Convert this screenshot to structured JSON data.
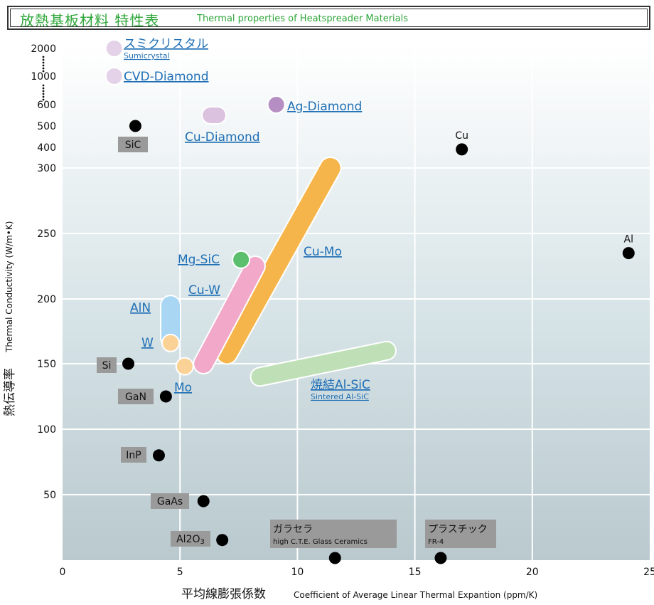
{
  "header": {
    "title_ja": "放熱基板材料 特性表",
    "title_en": "Thermal properties of Heatspreader Materials"
  },
  "chart_data": {
    "type": "scatter",
    "xlabel_ja": "平均線膨張係数",
    "xlabel_en": "Coefficient of Average Linear Thermal Expantion (ppm/K)",
    "ylabel_ja": "熱伝導率",
    "ylabel_en": "Thermal Conductivity (W/m•K)",
    "xlim": [
      0,
      25
    ],
    "x_ticks": [
      "0",
      "5",
      "10",
      "15",
      "20",
      "25"
    ],
    "y_ticks": [
      {
        "label": "2000",
        "v": 2000
      },
      {
        "label": "1000",
        "v": 1000
      },
      {
        "label": "600",
        "v": 600
      },
      {
        "label": "500",
        "v": 500
      },
      {
        "label": "400",
        "v": 400
      },
      {
        "label": "300",
        "v": 300
      },
      {
        "label": "250",
        "v": 250
      },
      {
        "label": "200",
        "v": 200
      },
      {
        "label": "150",
        "v": 150
      },
      {
        "label": "100",
        "v": 100
      },
      {
        "label": "50",
        "v": 50
      }
    ],
    "grid": true,
    "reference_points": [
      {
        "name": "SiC",
        "x": 3.1,
        "y": 500,
        "color": "#000000",
        "style": "box"
      },
      {
        "name": "Cu",
        "x": 17.0,
        "y": 390,
        "color": "#000000",
        "style": "text"
      },
      {
        "name": "Al",
        "x": 24.1,
        "y": 235,
        "color": "#000000",
        "style": "text"
      },
      {
        "name": "Si",
        "x": 2.8,
        "y": 150,
        "color": "#000000",
        "style": "box"
      },
      {
        "name": "GaN",
        "x": 4.4,
        "y": 125,
        "color": "#000000",
        "style": "box"
      },
      {
        "name": "InP",
        "x": 4.1,
        "y": 80,
        "color": "#000000",
        "style": "box"
      },
      {
        "name": "GaAs",
        "x": 6.0,
        "y": 45,
        "color": "#000000",
        "style": "box"
      },
      {
        "name": "Al2O3",
        "x": 6.8,
        "y": 15,
        "color": "#000000",
        "style": "box",
        "sub": "3"
      },
      {
        "name": "ガラセラ",
        "sub": "high C.T.E. Glass Ceramics",
        "x": 11.6,
        "y": 0,
        "color": "#000000",
        "style": "box-wide"
      },
      {
        "name": "プラスチック",
        "sub": "FR-4",
        "x": 16.1,
        "y": 0,
        "color": "#000000",
        "style": "box-wide"
      }
    ],
    "materials": [
      {
        "name": "スミクリスタル",
        "sub": "Sumicrystal",
        "x": [
          2.2,
          2.2
        ],
        "y": [
          2000,
          2000
        ],
        "color": "#e4d3e8"
      },
      {
        "name": "CVD-Diamond",
        "x": [
          2.2,
          2.2
        ],
        "y": [
          1000,
          1000
        ],
        "color": "#e4d3e8"
      },
      {
        "name": "Ag-Diamond",
        "x": [
          9.1,
          9.1
        ],
        "y": [
          600,
          600
        ],
        "color": "#b58fc4"
      },
      {
        "name": "Cu-Diamond",
        "x": [
          6.3,
          6.6
        ],
        "y": [
          550,
          550
        ],
        "color": "#dbc3e0"
      },
      {
        "name": "Cu-Mo",
        "x": [
          7.0,
          11.4
        ],
        "y": [
          158,
          300
        ],
        "color": "#f5b54a"
      },
      {
        "name": "Cu-W",
        "x": [
          6.0,
          8.2
        ],
        "y": [
          150,
          225
        ],
        "color": "#f1a8c9"
      },
      {
        "name": "Mg-SiC",
        "x": [
          7.6,
          7.6
        ],
        "y": [
          230,
          230
        ],
        "color": "#5cbf6e"
      },
      {
        "name": "AlN",
        "x": [
          4.6,
          4.6
        ],
        "y": [
          170,
          195
        ],
        "color": "#a8d6f3"
      },
      {
        "name": "W",
        "x": [
          4.6,
          4.6
        ],
        "y": [
          166,
          166
        ],
        "color": "#fad296"
      },
      {
        "name": "Mo",
        "x": [
          5.2,
          5.2
        ],
        "y": [
          148,
          148
        ],
        "color": "#fad296"
      },
      {
        "name": "焼結Al-SiC",
        "sub": "Sintered Al-SiC",
        "x": [
          8.4,
          13.8
        ],
        "y": [
          140,
          160
        ],
        "color": "#bfe0b7"
      }
    ]
  }
}
